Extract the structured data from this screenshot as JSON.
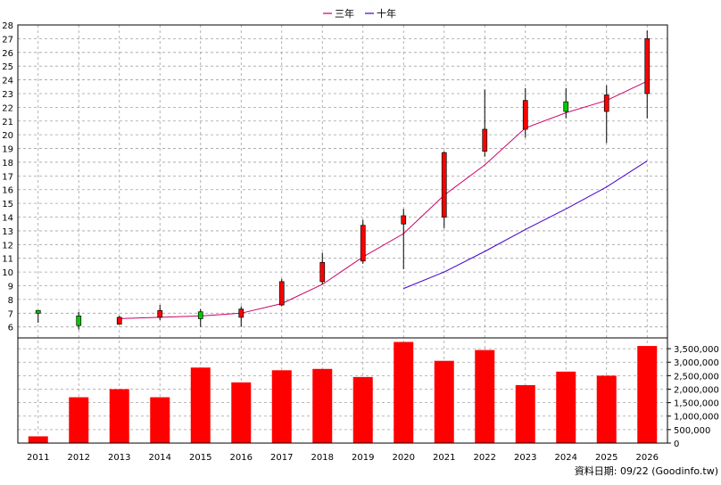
{
  "legend": {
    "three_year": "三年",
    "ten_year": "十年"
  },
  "footer": {
    "source": "資料日期: 09/22 (Goodinfo.tw)"
  },
  "colors": {
    "three_year_line": "#cc0066",
    "ten_year_line": "#4400cc",
    "candle_up": "#ff0000",
    "candle_down": "#00cc00",
    "volume_bar": "#ff0000",
    "grid": "#a0a0a0"
  },
  "chart_data": [
    {
      "type": "candlestick",
      "categories": [
        "2011",
        "2012",
        "2013",
        "2014",
        "2015",
        "2016",
        "2017",
        "2018",
        "2019",
        "2020",
        "2021",
        "2022",
        "2023",
        "2024",
        "2025",
        "2026"
      ],
      "ylim": [
        5.2,
        28
      ],
      "yticks": [
        6,
        7,
        8,
        9,
        10,
        11,
        12,
        13,
        14,
        15,
        16,
        17,
        18,
        19,
        20,
        21,
        22,
        23,
        24,
        25,
        26,
        27,
        28
      ],
      "grid": true,
      "legend_position": "top-center",
      "ohlc": [
        {
          "x": "2011",
          "open": 7.0,
          "high": 7.2,
          "low": 6.3,
          "close": 7.2
        },
        {
          "x": "2012",
          "open": 6.1,
          "high": 7.1,
          "low": 5.8,
          "close": 6.8
        },
        {
          "x": "2013",
          "open": 6.7,
          "high": 6.8,
          "low": 6.2,
          "close": 6.2
        },
        {
          "x": "2014",
          "open": 7.2,
          "high": 7.6,
          "low": 6.5,
          "close": 6.7
        },
        {
          "x": "2015",
          "open": 6.6,
          "high": 7.3,
          "low": 6.0,
          "close": 7.1
        },
        {
          "x": "2016",
          "open": 7.3,
          "high": 7.5,
          "low": 6.0,
          "close": 6.7
        },
        {
          "x": "2017",
          "open": 9.3,
          "high": 9.5,
          "low": 7.5,
          "close": 7.6
        },
        {
          "x": "2018",
          "open": 10.7,
          "high": 11.4,
          "low": 9.1,
          "close": 9.3
        },
        {
          "x": "2019",
          "open": 13.4,
          "high": 13.8,
          "low": 10.6,
          "close": 10.8
        },
        {
          "x": "2020",
          "open": 14.1,
          "high": 14.6,
          "low": 10.2,
          "close": 13.5
        },
        {
          "x": "2021",
          "open": 18.7,
          "high": 18.8,
          "low": 13.2,
          "close": 14.0
        },
        {
          "x": "2022",
          "open": 20.4,
          "high": 23.3,
          "low": 18.4,
          "close": 18.8
        },
        {
          "x": "2023",
          "open": 22.5,
          "high": 23.4,
          "low": 19.8,
          "close": 20.4
        },
        {
          "x": "2024",
          "open": 21.7,
          "high": 23.4,
          "low": 21.2,
          "close": 22.4
        },
        {
          "x": "2025",
          "open": 22.9,
          "high": 23.6,
          "low": 19.4,
          "close": 21.7
        },
        {
          "x": "2026",
          "open": 27.0,
          "high": 27.6,
          "low": 21.2,
          "close": 23.0
        }
      ],
      "series": [
        {
          "name": "三年",
          "x": [
            "2013",
            "2014",
            "2015",
            "2016",
            "2017",
            "2018",
            "2019",
            "2020",
            "2021",
            "2022",
            "2023",
            "2024",
            "2025",
            "2026"
          ],
          "values": [
            6.6,
            6.7,
            6.8,
            7.0,
            7.7,
            9.1,
            11.1,
            12.8,
            15.6,
            17.8,
            20.5,
            21.6,
            22.5,
            23.9
          ]
        },
        {
          "name": "十年",
          "x": [
            "2020",
            "2021",
            "2022",
            "2023",
            "2024",
            "2025",
            "2026"
          ],
          "values": [
            8.8,
            10.0,
            11.5,
            13.1,
            14.6,
            16.2,
            18.1
          ]
        }
      ]
    },
    {
      "type": "bar",
      "categories": [
        "2011",
        "2012",
        "2013",
        "2014",
        "2015",
        "2016",
        "2017",
        "2018",
        "2019",
        "2020",
        "2021",
        "2022",
        "2023",
        "2024",
        "2025",
        "2026"
      ],
      "values": [
        250000,
        1700000,
        2000000,
        1700000,
        2800000,
        2250000,
        2700000,
        2750000,
        2450000,
        3750000,
        3050000,
        3450000,
        2150000,
        2650000,
        2500000,
        3600000
      ],
      "ylim": [
        0,
        3900000
      ],
      "ytick_labels": [
        "0",
        "500,000",
        "1,000,000",
        "1,500,000",
        "2,000,000",
        "2,500,000",
        "3,000,000",
        "3,500,000"
      ],
      "grid": true
    }
  ]
}
